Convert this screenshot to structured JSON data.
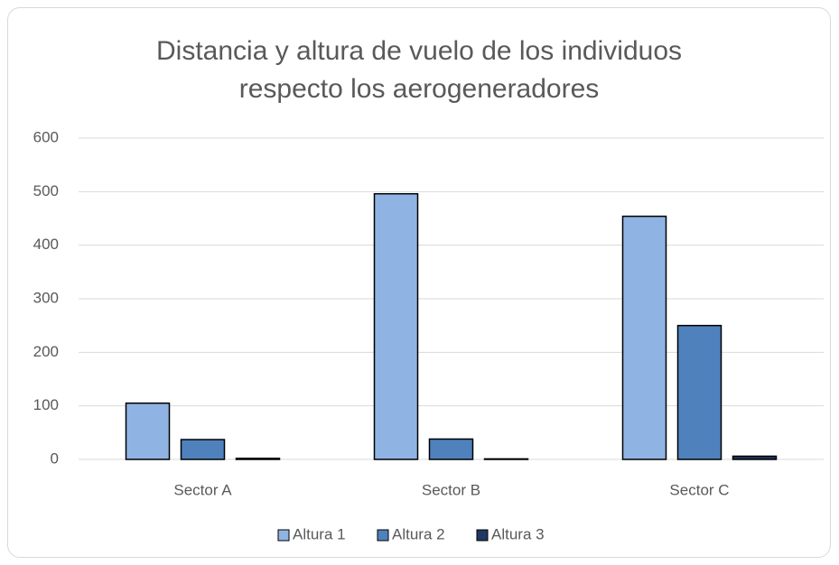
{
  "chart_data": {
    "type": "bar",
    "title": "Distancia y altura de vuelo de los individuos respecto los aerogeneradores",
    "categories": [
      "Sector A",
      "Sector B",
      "Sector C"
    ],
    "series": [
      {
        "name": "Altura 1",
        "color": "#8fb4e3",
        "values": [
          105,
          496,
          454
        ]
      },
      {
        "name": "Altura 2",
        "color": "#4f81bd",
        "values": [
          37,
          38,
          250
        ]
      },
      {
        "name": "Altura 3",
        "color": "#1f3864",
        "values": [
          2,
          1,
          6
        ]
      }
    ],
    "ylim": [
      0,
      600
    ],
    "yticks": [
      0,
      100,
      200,
      300,
      400,
      500,
      600
    ],
    "grid": true,
    "legend": "bottom"
  }
}
